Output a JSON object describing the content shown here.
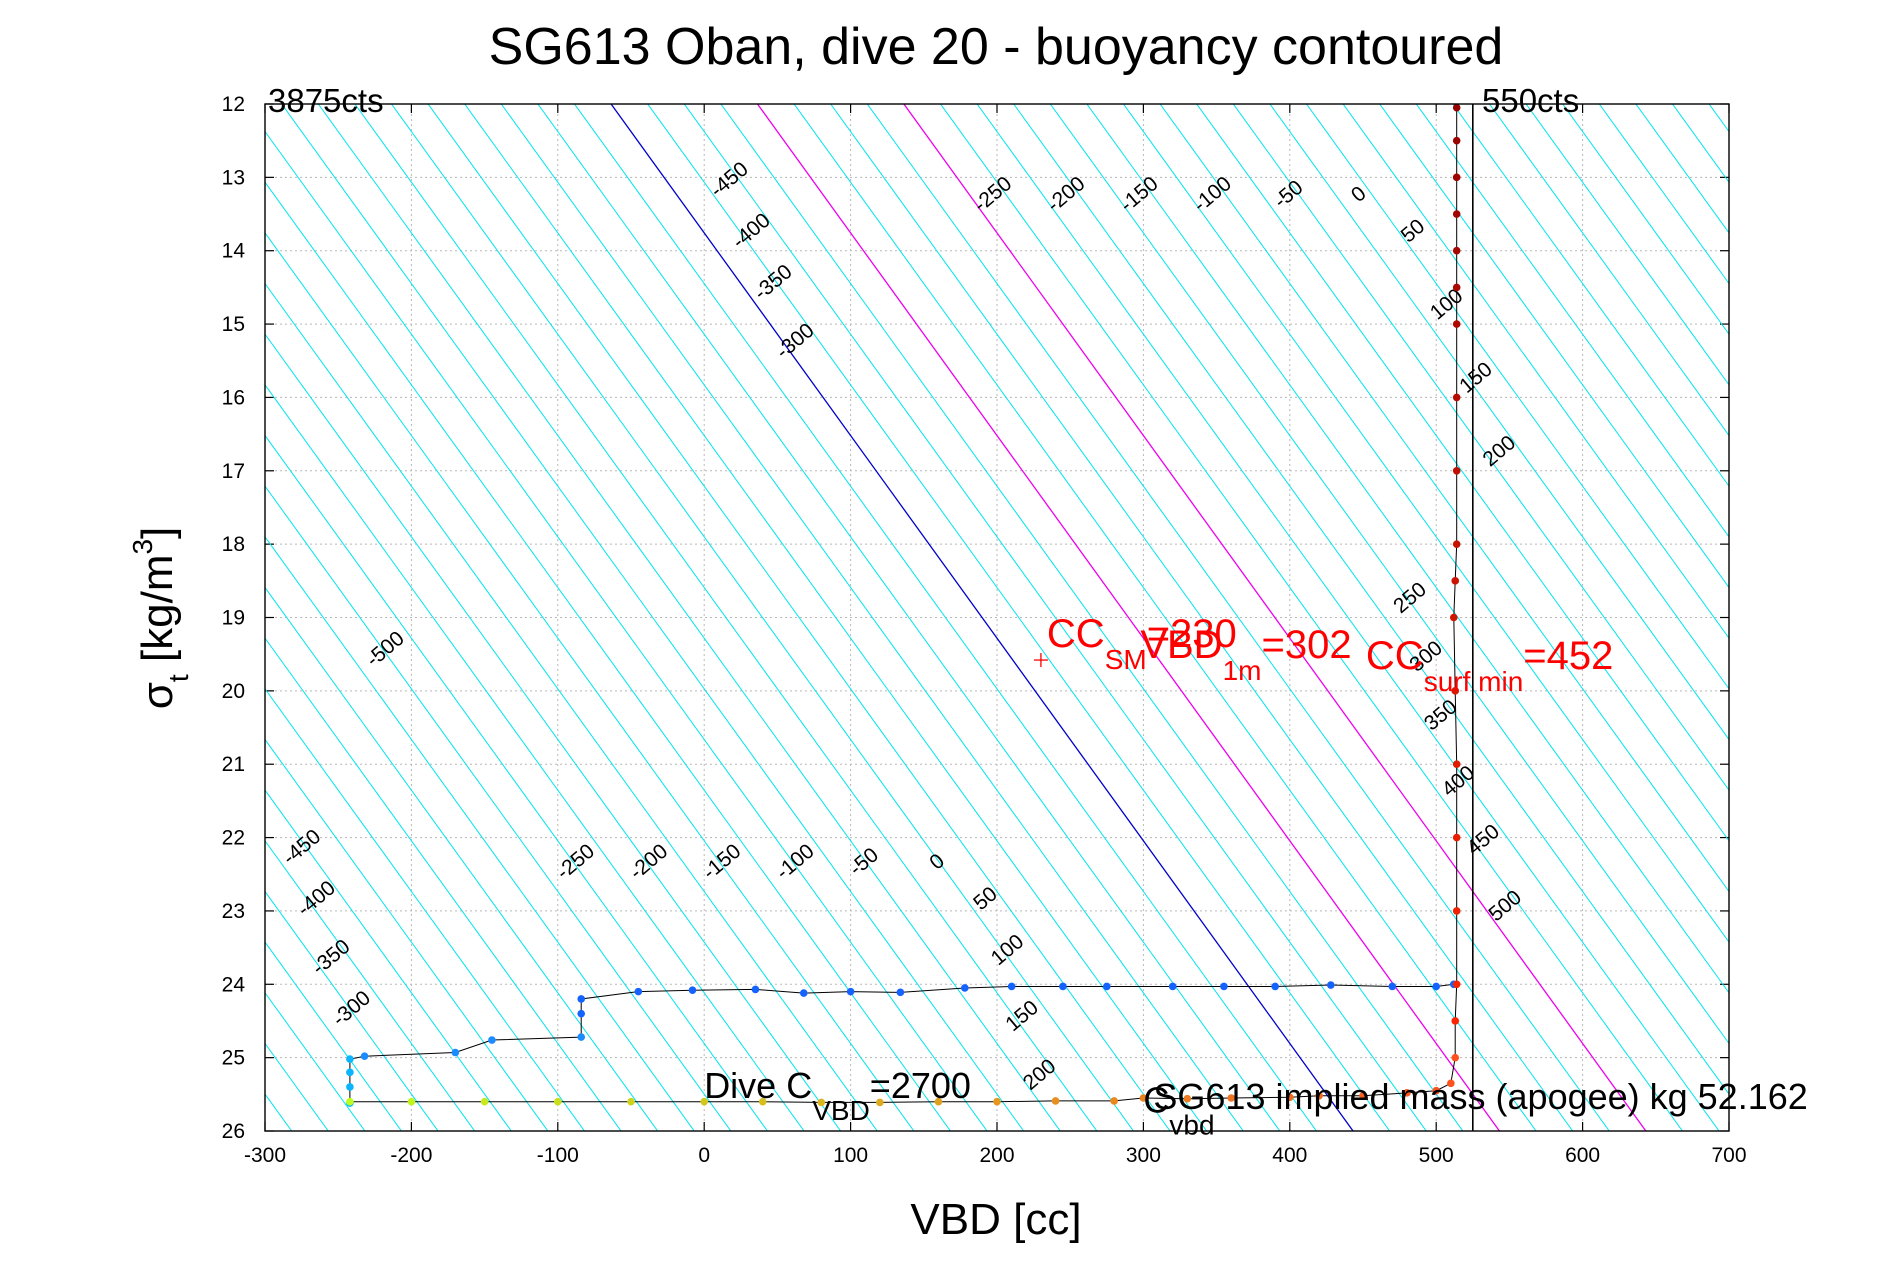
{
  "chart_data": {
    "type": "scatter",
    "title": "SG613 Oban, dive 20 - buoyancy contoured",
    "xlabel": "VBD [cc]",
    "ylabel": {
      "main": "σ",
      "sub": "t",
      "rest": " [kg/m",
      "sup": "3",
      "end": "]"
    },
    "xlim": [
      -300,
      700
    ],
    "ylim": [
      12,
      26
    ],
    "y_reversed": true,
    "grid": true,
    "xticks": [
      -300,
      -200,
      -100,
      0,
      100,
      200,
      300,
      400,
      500,
      600,
      700
    ],
    "xtick_labels": [
      "-300",
      "-200",
      "-100",
      "0",
      "100",
      "200",
      "300",
      "400",
      "500",
      "600",
      "700"
    ],
    "yticks": [
      12,
      13,
      14,
      15,
      16,
      17,
      18,
      19,
      20,
      21,
      22,
      23,
      24,
      25,
      26
    ],
    "ytick_labels": [
      "12",
      "13",
      "14",
      "15",
      "16",
      "17",
      "18",
      "19",
      "20",
      "21",
      "22",
      "23",
      "24",
      "25",
      "26"
    ],
    "corner_left": "3875cts",
    "corner_right": "550cts",
    "vbd_limit_line": 525,
    "contours": {
      "slope_cc_per_sigma": 36.2,
      "zero_intercept_vbd_at_sigma20": 226,
      "spacing_cc": 25,
      "colors": {
        "default": "#00e5ee",
        "zero": "#0000cc",
        "highlight": "#ee00ee"
      },
      "highlight_levels": [
        100,
        200
      ],
      "label_levels": [
        "-500",
        "-450",
        "-400",
        "-350",
        "-300",
        "-250",
        "-200",
        "-150",
        "-100",
        "-50",
        "0",
        "50",
        "100",
        "150",
        "200",
        "250",
        "300",
        "350",
        "400",
        "450",
        "500"
      ]
    },
    "contour_labels": [
      {
        "text": "-450",
        "x": 20,
        "y": 13.1
      },
      {
        "text": "-400",
        "x": 35,
        "y": 13.8
      },
      {
        "text": "-350",
        "x": 50,
        "y": 14.5
      },
      {
        "text": "-300",
        "x": 65,
        "y": 15.3
      },
      {
        "text": "-250",
        "x": 200,
        "y": 13.3
      },
      {
        "text": "-200",
        "x": 250,
        "y": 13.3
      },
      {
        "text": "-150",
        "x": 300,
        "y": 13.3
      },
      {
        "text": "-100",
        "x": 350,
        "y": 13.3
      },
      {
        "text": "-50",
        "x": 402,
        "y": 13.3
      },
      {
        "text": "0",
        "x": 450,
        "y": 13.3
      },
      {
        "text": "50",
        "x": 487,
        "y": 13.8
      },
      {
        "text": "100",
        "x": 510,
        "y": 14.8
      },
      {
        "text": "150",
        "x": 530,
        "y": 15.8
      },
      {
        "text": "200",
        "x": 546,
        "y": 16.8
      },
      {
        "text": "-500",
        "x": -215,
        "y": 19.5
      },
      {
        "text": "250",
        "x": 485,
        "y": 18.8
      },
      {
        "text": "300",
        "x": 496,
        "y": 19.6
      },
      {
        "text": "350",
        "x": 506,
        "y": 20.4
      },
      {
        "text": "400",
        "x": 518,
        "y": 21.3
      },
      {
        "text": "450",
        "x": 535,
        "y": 22.1
      },
      {
        "text": "500",
        "x": 550,
        "y": 23.0
      },
      {
        "text": "-450",
        "x": -272,
        "y": 22.2
      },
      {
        "text": "-400",
        "x": -262,
        "y": 22.9
      },
      {
        "text": "-350",
        "x": -252,
        "y": 23.7
      },
      {
        "text": "-300",
        "x": -238,
        "y": 24.4
      },
      {
        "text": "-250",
        "x": -85,
        "y": 22.4
      },
      {
        "text": "-200",
        "x": -35,
        "y": 22.4
      },
      {
        "text": "-150",
        "x": 15,
        "y": 22.4
      },
      {
        "text": "-100",
        "x": 65,
        "y": 22.4
      },
      {
        "text": "-50",
        "x": 112,
        "y": 22.4
      },
      {
        "text": "0",
        "x": 162,
        "y": 22.4
      },
      {
        "text": "50",
        "x": 195,
        "y": 22.9
      },
      {
        "text": "100",
        "x": 210,
        "y": 23.6
      },
      {
        "text": "150",
        "x": 220,
        "y": 24.5
      },
      {
        "text": "200",
        "x": 232,
        "y": 25.3
      }
    ],
    "annotations": {
      "cc_sm": {
        "pre": "CC",
        "sub": "SM",
        "post": "=230",
        "x": 230,
        "y": 19.4
      },
      "vbd_1m": {
        "pre": "VBD",
        "sub": "1m",
        "post": "=302",
        "x": 302,
        "y": 19.55
      },
      "cc_surf": {
        "pre": "CC",
        "sub": "surf min",
        "post": "=452",
        "x": 452,
        "y": 19.7
      },
      "dive_c": {
        "pre": "Dive C",
        "sub": "VBD",
        "post": "=2700",
        "x": 0,
        "y": 25.55
      },
      "c_vbd": {
        "pre": "C",
        "sub": "vbd",
        "post": "",
        "x": 300,
        "y": 25.75
      },
      "implied_mass": {
        "text": "SG613 implied mass (apogee) kg 52.162",
        "x": 300,
        "y": 25.7
      },
      "sm_marker": {
        "x": 230,
        "y": 19.58
      }
    },
    "series": [
      {
        "name": "",
        "color": "dive",
        "points": [
          [
            -242,
            25.62
          ],
          [
            -242,
            25.4
          ],
          [
            -242,
            25.2
          ],
          [
            -242,
            25.02
          ],
          [
            -232,
            24.98
          ],
          [
            -170,
            24.93
          ],
          [
            -145,
            24.76
          ],
          [
            -84,
            24.72
          ],
          [
            -84,
            24.4
          ],
          [
            -84,
            24.2
          ],
          [
            -45,
            24.1
          ],
          [
            -8,
            24.08
          ],
          [
            35,
            24.07
          ],
          [
            68,
            24.12
          ],
          [
            100,
            24.1
          ],
          [
            134,
            24.11
          ],
          [
            178,
            24.05
          ],
          [
            210,
            24.03
          ],
          [
            245,
            24.03
          ],
          [
            275,
            24.03
          ],
          [
            320,
            24.03
          ],
          [
            355,
            24.03
          ],
          [
            390,
            24.03
          ],
          [
            428,
            24.01
          ],
          [
            470,
            24.03
          ],
          [
            500,
            24.03
          ],
          [
            512,
            24.0
          ]
        ]
      },
      {
        "name": "",
        "color": "climb",
        "points": [
          [
            -242,
            25.6
          ],
          [
            -200,
            25.6
          ],
          [
            -150,
            25.6
          ],
          [
            -100,
            25.6
          ],
          [
            -50,
            25.6
          ],
          [
            0,
            25.6
          ],
          [
            40,
            25.6
          ],
          [
            80,
            25.61
          ],
          [
            120,
            25.61
          ],
          [
            160,
            25.6
          ],
          [
            200,
            25.6
          ],
          [
            240,
            25.59
          ],
          [
            280,
            25.59
          ],
          [
            300,
            25.55
          ],
          [
            330,
            25.56
          ],
          [
            360,
            25.55
          ],
          [
            400,
            25.54
          ],
          [
            420,
            25.52
          ],
          [
            450,
            25.52
          ],
          [
            480,
            25.48
          ],
          [
            500,
            25.45
          ],
          [
            510,
            25.35
          ],
          [
            513,
            25.0
          ],
          [
            513,
            24.5
          ],
          [
            514,
            24.0
          ],
          [
            514,
            23.0
          ],
          [
            514,
            22.0
          ],
          [
            514,
            21.0
          ],
          [
            513,
            20.0
          ],
          [
            512,
            19.0
          ],
          [
            513,
            18.5
          ],
          [
            514,
            18.0
          ],
          [
            514,
            17.0
          ],
          [
            514,
            16.0
          ],
          [
            514,
            15.0
          ],
          [
            514,
            14.5
          ],
          [
            514,
            14.0
          ],
          [
            514,
            13.5
          ],
          [
            514,
            13.0
          ],
          [
            514,
            12.5
          ],
          [
            514,
            12.05
          ]
        ]
      }
    ]
  }
}
